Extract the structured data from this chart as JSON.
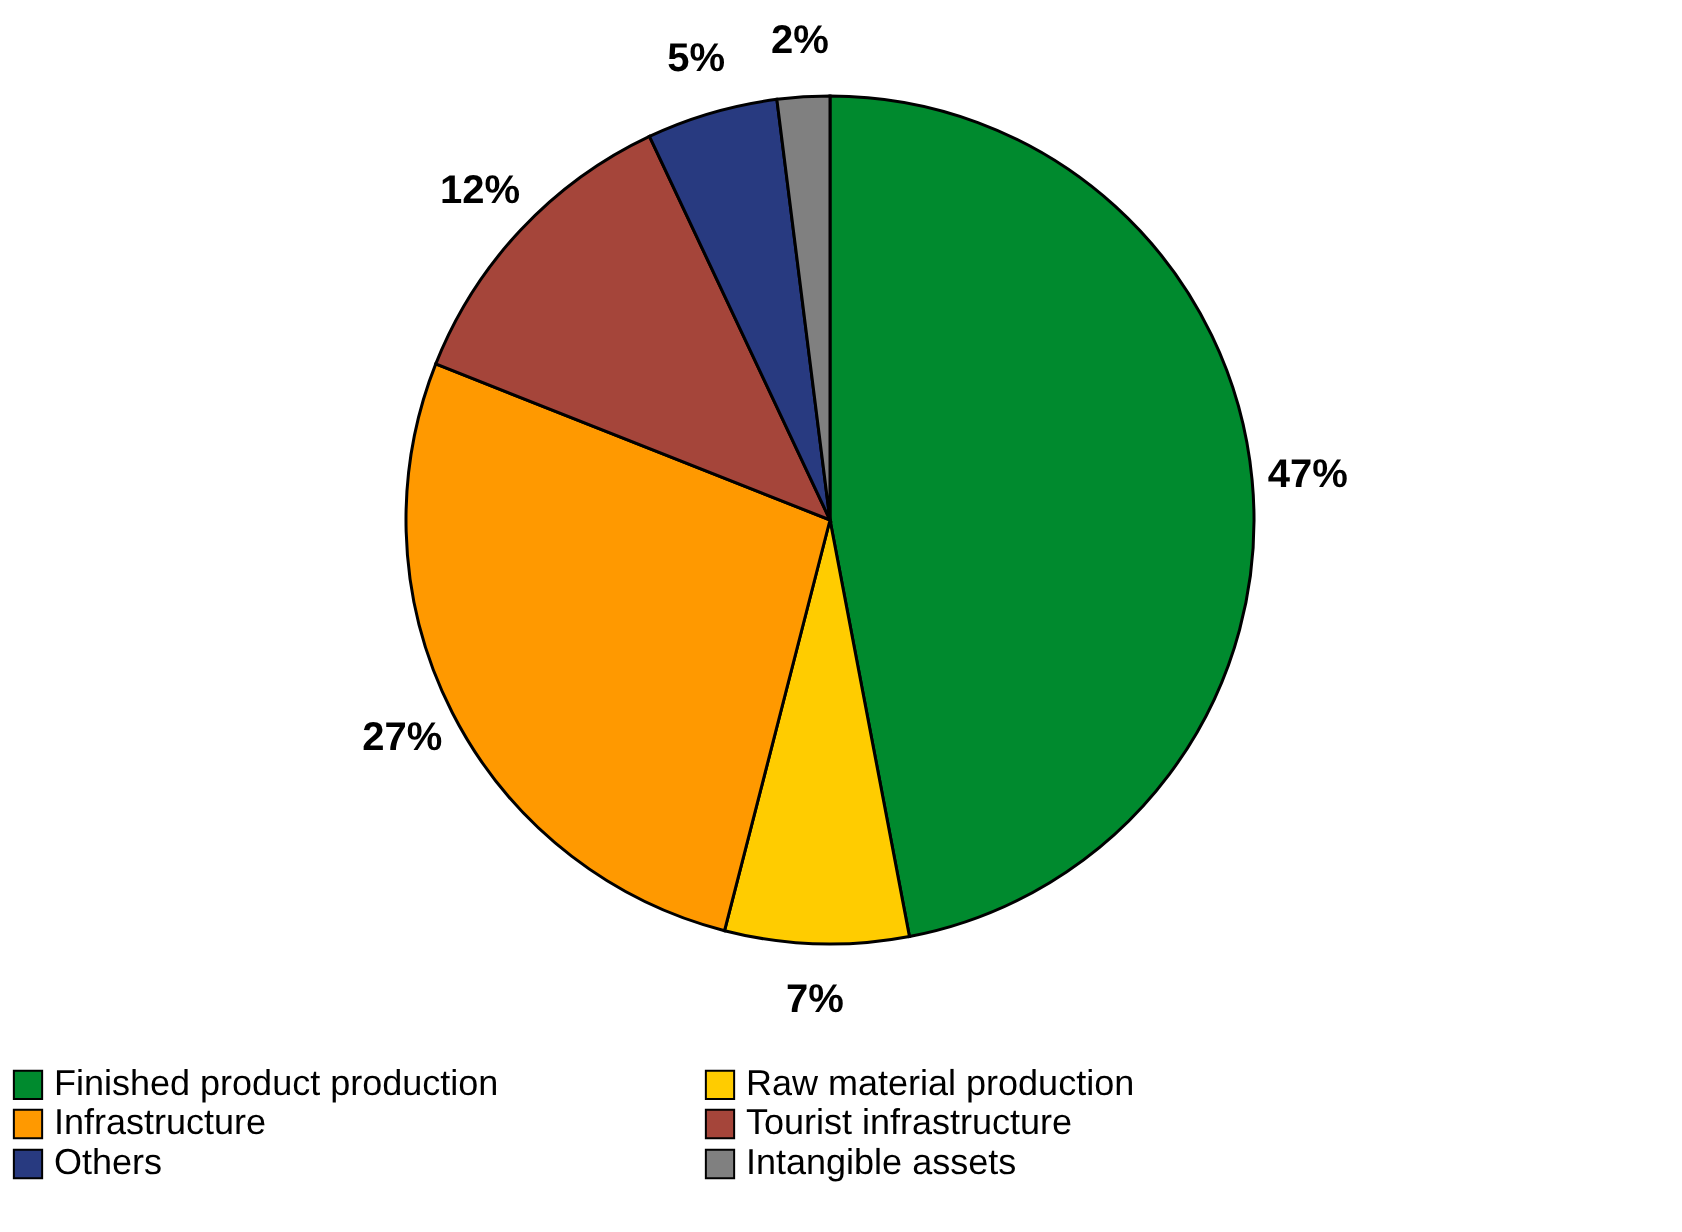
{
  "chart_data": {
    "type": "pie",
    "categories": [
      "Finished product production",
      "Raw material production",
      "Infrastructure",
      "Tourist infrastructure",
      "Others",
      "Intangible assets"
    ],
    "values": [
      47,
      7,
      27,
      12,
      5,
      2
    ],
    "colors": [
      "#008a2e",
      "#ffcc00",
      "#ff9900",
      "#a5453a",
      "#283a80",
      "#808080"
    ],
    "value_labels": [
      "47%",
      "7%",
      "27%",
      "12%",
      "5%",
      "2%"
    ],
    "legend": "bottom"
  }
}
